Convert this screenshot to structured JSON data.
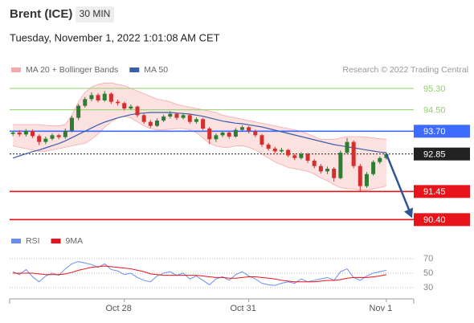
{
  "chart_data": [
    {
      "type": "candlestick",
      "title": "Brent (ICE)",
      "timeframe": "30 MIN",
      "subtitle": "Tuesday, November 1, 2022 1:01:08 AM CET",
      "source": "Research © 2022 Trading Central",
      "ylim": [
        90.05,
        95.6
      ],
      "categories": [
        null,
        null,
        null,
        null,
        null,
        null,
        null,
        null,
        null,
        null,
        null,
        null,
        null,
        null,
        null,
        null,
        null,
        "Oct 28",
        null,
        null,
        null,
        null,
        null,
        null,
        null,
        null,
        null,
        null,
        null,
        null,
        null,
        null,
        null,
        null,
        null,
        null,
        "Oct 31",
        null,
        null,
        null,
        null,
        null,
        null,
        null,
        null,
        null,
        null,
        null,
        null,
        null,
        null,
        null,
        null,
        null,
        null,
        null,
        null,
        "Nov 1"
      ],
      "up_color": "#2e7d32",
      "down_color": "#d32f2f",
      "ohlc": [
        [
          93.6,
          93.72,
          93.52,
          93.65
        ],
        [
          93.65,
          93.74,
          93.5,
          93.58
        ],
        [
          93.58,
          93.78,
          93.5,
          93.7
        ],
        [
          93.7,
          93.76,
          93.45,
          93.52
        ],
        [
          93.52,
          93.58,
          93.18,
          93.3
        ],
        [
          93.3,
          93.5,
          93.22,
          93.42
        ],
        [
          93.42,
          93.62,
          93.36,
          93.55
        ],
        [
          93.55,
          93.6,
          93.4,
          93.48
        ],
        [
          93.48,
          93.8,
          93.42,
          93.72
        ],
        [
          93.72,
          94.28,
          93.66,
          94.2
        ],
        [
          94.2,
          94.72,
          94.12,
          94.65
        ],
        [
          94.65,
          94.98,
          94.58,
          94.9
        ],
        [
          94.9,
          95.15,
          94.82,
          95.05
        ],
        [
          95.05,
          95.12,
          94.78,
          94.85
        ],
        [
          94.85,
          95.2,
          94.8,
          95.1
        ],
        [
          95.1,
          95.15,
          94.72,
          94.8
        ],
        [
          94.8,
          94.88,
          94.66,
          94.75
        ],
        [
          94.75,
          94.8,
          94.48,
          94.55
        ],
        [
          94.55,
          94.7,
          94.5,
          94.62
        ],
        [
          94.62,
          94.66,
          94.22,
          94.3
        ],
        [
          94.3,
          94.36,
          93.98,
          94.05
        ],
        [
          94.05,
          94.12,
          93.82,
          93.9
        ],
        [
          93.9,
          94.18,
          93.86,
          94.1
        ],
        [
          94.1,
          94.32,
          94.04,
          94.25
        ],
        [
          94.25,
          94.45,
          94.18,
          94.35
        ],
        [
          94.35,
          94.4,
          94.12,
          94.2
        ],
        [
          94.2,
          94.38,
          94.14,
          94.3
        ],
        [
          94.3,
          94.34,
          93.98,
          94.05
        ],
        [
          94.05,
          94.22,
          93.98,
          94.15
        ],
        [
          94.15,
          94.2,
          93.74,
          93.8
        ],
        [
          93.8,
          93.86,
          93.22,
          93.4
        ],
        [
          93.4,
          93.62,
          93.3,
          93.55
        ],
        [
          93.55,
          93.72,
          93.48,
          93.65
        ],
        [
          93.65,
          93.7,
          93.42,
          93.5
        ],
        [
          93.5,
          93.82,
          93.46,
          93.75
        ],
        [
          93.75,
          93.92,
          93.68,
          93.85
        ],
        [
          93.85,
          93.9,
          93.62,
          93.7
        ],
        [
          93.7,
          93.76,
          93.48,
          93.55
        ],
        [
          93.55,
          93.6,
          93.12,
          93.2
        ],
        [
          93.2,
          93.26,
          92.98,
          93.05
        ],
        [
          93.05,
          93.12,
          92.88,
          92.95
        ],
        [
          92.95,
          93.08,
          92.9,
          93.0
        ],
        [
          93.0,
          93.04,
          92.74,
          92.8
        ],
        [
          92.8,
          92.86,
          92.62,
          92.7
        ],
        [
          92.7,
          92.92,
          92.64,
          92.85
        ],
        [
          92.85,
          92.9,
          92.52,
          92.6
        ],
        [
          92.6,
          92.66,
          92.32,
          92.4
        ],
        [
          92.4,
          92.48,
          92.12,
          92.2
        ],
        [
          92.2,
          92.38,
          92.1,
          92.3
        ],
        [
          92.3,
          92.36,
          91.82,
          91.95
        ],
        [
          91.95,
          92.98,
          91.9,
          92.9
        ],
        [
          92.9,
          93.45,
          92.84,
          93.3
        ],
        [
          93.3,
          93.36,
          92.32,
          92.4
        ],
        [
          92.4,
          92.48,
          91.48,
          91.65
        ],
        [
          91.65,
          92.18,
          91.58,
          92.1
        ],
        [
          92.1,
          92.62,
          92.04,
          92.55
        ],
        [
          92.55,
          92.76,
          92.48,
          92.7
        ],
        [
          92.7,
          92.92,
          92.64,
          92.85
        ]
      ],
      "series": [
        {
          "name": "MA 20 + Bollinger Bands",
          "color": "#f7a8a8",
          "upper": [
            93.95,
            93.95,
            93.95,
            93.95,
            93.95,
            93.92,
            93.9,
            93.9,
            93.95,
            94.3,
            94.8,
            95.15,
            95.35,
            95.45,
            95.5,
            95.5,
            95.45,
            95.4,
            95.3,
            95.2,
            95.1,
            95.0,
            94.9,
            94.85,
            94.8,
            94.7,
            94.65,
            94.6,
            94.55,
            94.5,
            94.45,
            94.4,
            94.3,
            94.25,
            94.2,
            94.15,
            94.1,
            94.05,
            94.0,
            93.95,
            93.9,
            93.85,
            93.8,
            93.75,
            93.7,
            93.6,
            93.5,
            93.4,
            93.4,
            93.4,
            93.45,
            93.5,
            93.5,
            93.5,
            93.48,
            93.45,
            93.42,
            93.4
          ],
          "lower": [
            93.15,
            93.1,
            93.05,
            93.0,
            92.95,
            92.95,
            93.0,
            93.05,
            93.1,
            93.15,
            93.2,
            93.25,
            93.4,
            93.6,
            93.85,
            94.05,
            94.2,
            94.25,
            94.2,
            94.05,
            93.9,
            93.8,
            93.75,
            93.75,
            93.78,
            93.8,
            93.8,
            93.75,
            93.65,
            93.45,
            93.25,
            93.15,
            93.1,
            93.1,
            93.15,
            93.15,
            93.1,
            93.0,
            92.85,
            92.7,
            92.55,
            92.45,
            92.35,
            92.3,
            92.25,
            92.2,
            92.1,
            91.95,
            91.85,
            91.7,
            91.6,
            91.55,
            91.55,
            91.5,
            91.5,
            91.55,
            91.6,
            91.65
          ]
        },
        {
          "name": "MA 50",
          "color": "#3a5ea8",
          "values": [
            92.7,
            92.78,
            92.86,
            92.94,
            93.0,
            93.08,
            93.16,
            93.24,
            93.34,
            93.46,
            93.58,
            93.7,
            93.82,
            93.94,
            94.04,
            94.12,
            94.2,
            94.26,
            94.32,
            94.36,
            94.38,
            94.4,
            94.4,
            94.4,
            94.4,
            94.38,
            94.36,
            94.34,
            94.3,
            94.26,
            94.2,
            94.14,
            94.08,
            94.04,
            94.0,
            93.98,
            93.94,
            93.9,
            93.86,
            93.8,
            93.74,
            93.68,
            93.62,
            93.56,
            93.5,
            93.44,
            93.38,
            93.32,
            93.26,
            93.2,
            93.16,
            93.12,
            93.08,
            93.04,
            93.0,
            92.96,
            92.92,
            92.9
          ]
        }
      ],
      "levels": [
        {
          "value": 95.3,
          "label": "95.30",
          "color": "#8fd16a",
          "boxed": false
        },
        {
          "value": 94.5,
          "label": "94.50",
          "color": "#8fd16a",
          "boxed": false
        },
        {
          "value": 93.7,
          "label": "93.70",
          "color": "#3d6bff",
          "boxed": true
        },
        {
          "value": 92.85,
          "label": "92.85",
          "color": "#222222",
          "boxed": true,
          "dotted": true
        },
        {
          "value": 91.45,
          "label": "91.45",
          "color": "#e8141b",
          "boxed": true
        },
        {
          "value": 90.4,
          "label": "90.40",
          "color": "#e8141b",
          "boxed": true
        }
      ]
    },
    {
      "type": "line",
      "ylim": [
        11,
        80
      ],
      "yticks": [
        70,
        50,
        30
      ],
      "series": [
        {
          "name": "RSI",
          "color": "#6b8ff0",
          "values": [
            52,
            48,
            55,
            45,
            38,
            46,
            50,
            47,
            56,
            63,
            66,
            64,
            62,
            58,
            63,
            55,
            53,
            48,
            50,
            44,
            40,
            38,
            46,
            50,
            52,
            47,
            50,
            42,
            46,
            40,
            34,
            42,
            45,
            40,
            48,
            52,
            46,
            42,
            36,
            34,
            33,
            36,
            38,
            36,
            42,
            38,
            40,
            42,
            44,
            40,
            52,
            56,
            44,
            40,
            46,
            50,
            52,
            54
          ]
        },
        {
          "name": "9MA",
          "color": "#e8141b",
          "values": [
            50,
            50,
            50,
            50,
            49,
            48,
            48,
            48,
            49,
            51,
            54,
            56,
            58,
            59,
            60,
            59,
            58,
            57,
            56,
            54,
            52,
            49,
            48,
            47,
            47,
            47,
            47,
            47,
            47,
            46,
            45,
            44,
            44,
            43,
            43,
            44,
            45,
            45,
            44,
            43,
            42,
            40,
            39,
            38,
            38,
            38,
            38,
            39,
            40,
            40,
            41,
            43,
            44,
            44,
            44,
            45,
            46,
            48
          ]
        }
      ]
    }
  ]
}
